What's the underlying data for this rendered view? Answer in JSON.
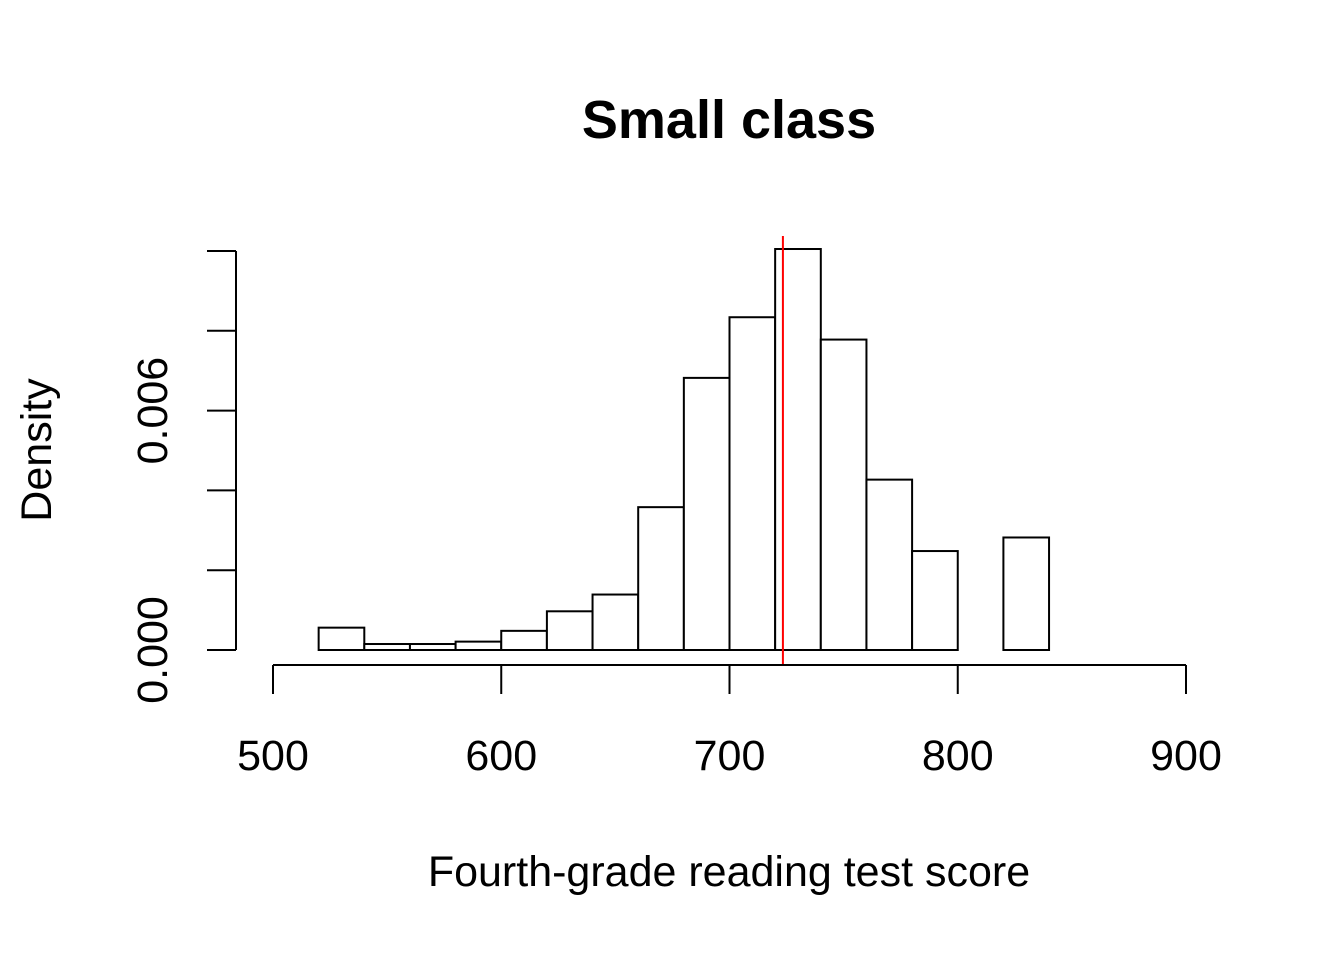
{
  "chart_data": {
    "type": "histogram",
    "title": "Small class",
    "xlabel": "Fourth-grade reading test score",
    "ylabel": "Density",
    "xlim": [
      500,
      900
    ],
    "ylim": [
      0,
      0.01
    ],
    "x_ticks": [
      500,
      600,
      700,
      800,
      900
    ],
    "y_ticks": [
      0,
      0.002,
      0.004,
      0.006,
      0.008,
      0.01
    ],
    "y_tick_labels": [
      "0.000",
      "",
      "",
      "0.006",
      "",
      ""
    ],
    "bin_width": 20,
    "bins": [
      {
        "start": 520,
        "end": 540,
        "density": 0.00056
      },
      {
        "start": 540,
        "end": 560,
        "density": 0.00015
      },
      {
        "start": 560,
        "end": 580,
        "density": 0.00015
      },
      {
        "start": 580,
        "end": 600,
        "density": 0.00021
      },
      {
        "start": 600,
        "end": 620,
        "density": 0.00048
      },
      {
        "start": 620,
        "end": 640,
        "density": 0.00097
      },
      {
        "start": 640,
        "end": 660,
        "density": 0.00139
      },
      {
        "start": 660,
        "end": 680,
        "density": 0.00358
      },
      {
        "start": 680,
        "end": 700,
        "density": 0.00682
      },
      {
        "start": 700,
        "end": 720,
        "density": 0.00834
      },
      {
        "start": 720,
        "end": 740,
        "density": 0.01005
      },
      {
        "start": 740,
        "end": 760,
        "density": 0.00778
      },
      {
        "start": 760,
        "end": 780,
        "density": 0.00427
      },
      {
        "start": 780,
        "end": 800,
        "density": 0.00248
      },
      {
        "start": 800,
        "end": 820,
        "density": 0
      },
      {
        "start": 820,
        "end": 840,
        "density": 0.00282
      }
    ],
    "mean_line": {
      "x": 723.4,
      "color": "#ff0000"
    },
    "bar_fill": "#ffffff",
    "bar_stroke": "#000000"
  }
}
